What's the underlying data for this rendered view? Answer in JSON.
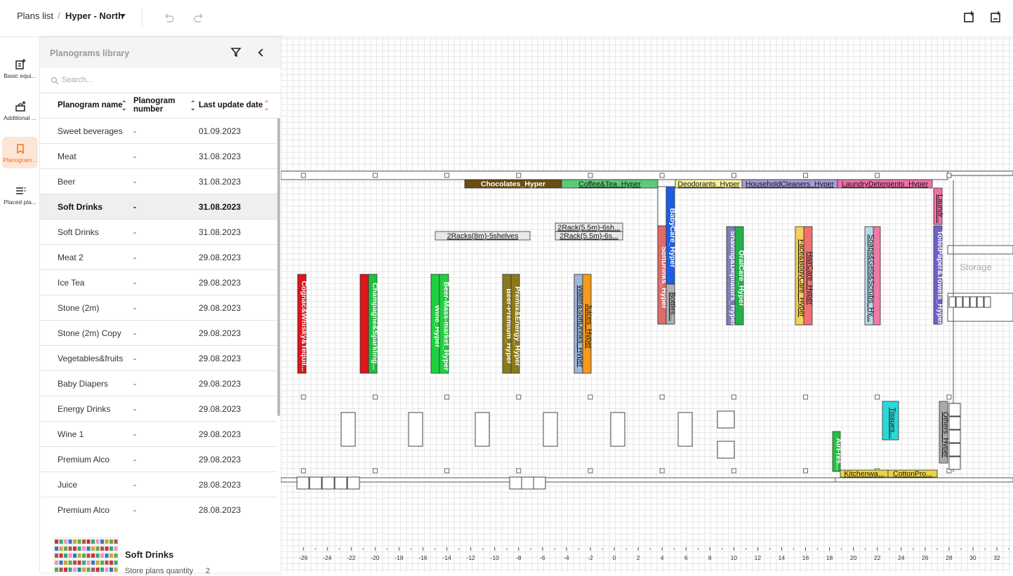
{
  "breadcrumb": {
    "root": "Plans list",
    "separator": "/",
    "current": "Hyper - North"
  },
  "rail": [
    {
      "label": "Basic equi...",
      "active": false
    },
    {
      "label": "Additional ...",
      "active": false
    },
    {
      "label": "Planogram...",
      "active": true
    },
    {
      "label": "Placed pla...",
      "active": false
    }
  ],
  "library": {
    "title": "Planograms library",
    "search_placeholder": "Search...",
    "columns": [
      "Planogram name",
      "Planogram number",
      "Last update date"
    ],
    "selected_row": 3,
    "rows": [
      [
        "Sweet beverages",
        "-",
        "01.09.2023"
      ],
      [
        "Meat",
        "-",
        "31.08.2023"
      ],
      [
        "Beer",
        "-",
        "31.08.2023"
      ],
      [
        "Soft Drinks",
        "-",
        "31.08.2023"
      ],
      [
        "Soft Drinks",
        "-",
        "31.08.2023"
      ],
      [
        "Meat 2",
        "-",
        "29.08.2023"
      ],
      [
        "Ice Tea",
        "-",
        "29.08.2023"
      ],
      [
        "Stone (2m)",
        "-",
        "29.08.2023"
      ],
      [
        "Stone (2m) Copy",
        "-",
        "29.08.2023"
      ],
      [
        "Vegetables&fruits",
        "-",
        "29.08.2023"
      ],
      [
        "Baby Diapers",
        "-",
        "29.08.2023"
      ],
      [
        "Energy Drinks",
        "-",
        "29.08.2023"
      ],
      [
        "Wine 1",
        "-",
        "29.08.2023"
      ],
      [
        "Premium Alco",
        "-",
        "29.08.2023"
      ],
      [
        "Juice",
        "-",
        "28.08.2023"
      ],
      [
        "Premium Alco",
        "-",
        "28.08.2023"
      ]
    ],
    "details": {
      "name": "Soft Drinks",
      "quantity_label": "Store plans quantity",
      "quantity": 2
    }
  },
  "canvas": {
    "storage_label": "Storage",
    "fixtures": [
      {
        "label": "Chocolates_Hyper",
        "color": "#6b4c12"
      },
      {
        "label": "Coffee&Tea_Hyper",
        "color": "#5dc977"
      },
      {
        "label": "Deodorants_Hyper",
        "color": "#f6f1a0"
      },
      {
        "label": "HouseholdCleaners_Hyper",
        "color": "#a59bd8"
      },
      {
        "label": "LaundryDetergents_Hyper",
        "color": "#f06fa6"
      },
      {
        "label": "2Racks(8m)-5shelves",
        "color": "#e8e8e8"
      },
      {
        "label": "2Rack(5.5m)-6sh...",
        "color": "#e8e8e8"
      },
      {
        "label": "2Rack(5.5m)-6s...",
        "color": "#e8e8e8"
      },
      {
        "label": "Cognac&Whisky&Tequil...",
        "color": "#e0141b"
      },
      {
        "label": "Champagne&Sparkling...",
        "color": "#20c040"
      },
      {
        "label": "Wine_Hyper",
        "color": "#20d040"
      },
      {
        "label": "Beer-Mass-market_Hyper",
        "color": "#20d040"
      },
      {
        "label": "Beer-Premium_Hyper",
        "color": "#8b7a1a"
      },
      {
        "label": "Premix&Energy_Hyper",
        "color": "#8b7a1a"
      },
      {
        "label": "Water&SoftDrinks_Hyper",
        "color": "#9fb7d8"
      },
      {
        "label": "Juices_Hyper",
        "color": "#f59a1a"
      },
      {
        "label": "SoftDrinks_Hyper",
        "color": "#e06b6b"
      },
      {
        "label": "BabyCare_Hyper",
        "color": "#1a5fe6"
      },
      {
        "label": "Bottles...",
        "color": "#b0b0b0"
      },
      {
        "label": "Shaving&Depilators_Hyper",
        "color": "#7b7fb5"
      },
      {
        "label": "OralCare_Hyper",
        "color": "#22b14c"
      },
      {
        "label": "Face&BodyCare_Hyper",
        "color": "#f5d05a"
      },
      {
        "label": "HairCare_Hyper",
        "color": "#f07070"
      },
      {
        "label": "Soaps&Gels&Scrubs_Hy...",
        "color": "#b9d8e8"
      },
      {
        "label": "Laundr...",
        "color": "#f06fa6"
      },
      {
        "label": "ToiletPaper&Towels_Hyper",
        "color": "#7060c8"
      },
      {
        "label": "Others_Hyper",
        "color": "#aaaaaa"
      },
      {
        "label": "Tissues...",
        "color": "#2ad8d8"
      },
      {
        "label": "AirFres...",
        "color": "#22c040"
      },
      {
        "label": "Kitchenwa...",
        "color": "#e8d44a"
      },
      {
        "label": "CottonPro...",
        "color": "#e8d44a"
      }
    ],
    "ruler": [
      -26,
      -24,
      -22,
      -20,
      -18,
      -16,
      -14,
      -12,
      -10,
      -8,
      -6,
      -4,
      -2,
      0,
      2,
      4,
      6,
      8,
      10,
      12,
      14,
      16,
      18,
      20,
      22,
      24,
      26,
      28,
      30,
      32
    ]
  }
}
